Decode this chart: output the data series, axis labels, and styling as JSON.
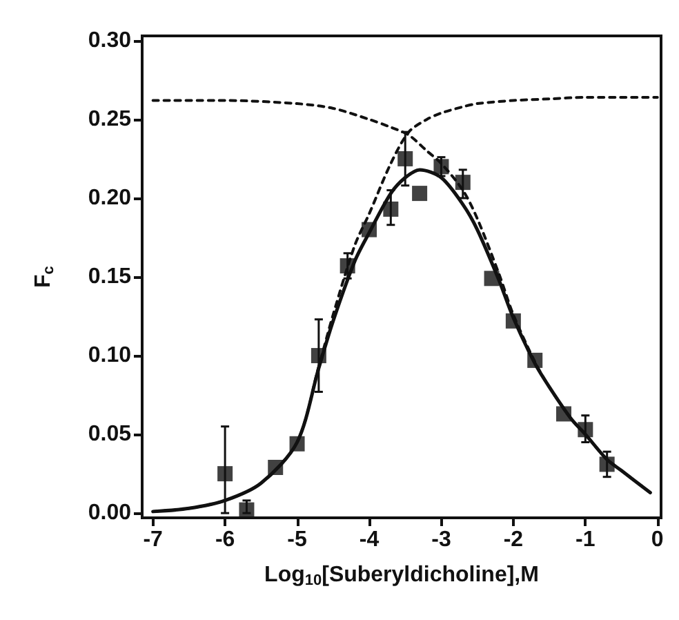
{
  "chart_data": {
    "type": "scatter",
    "xlabel": "Log$_{10}$[Suberyldicholine],M",
    "ylabel": "F$_{c}$",
    "xlim": [
      -7.15,
      0.05
    ],
    "xticks": [
      -7,
      -6,
      -5,
      -4,
      -3,
      -2,
      -1,
      0
    ],
    "ylim": [
      -0.003,
      0.303
    ],
    "yticks": [
      {
        "value": 0,
        "label": "0.00"
      },
      {
        "value": 0.05,
        "label": "0.05"
      },
      {
        "value": 0.1,
        "label": "0.10"
      },
      {
        "value": 0.15,
        "label": "0.15"
      },
      {
        "value": 0.2,
        "label": "0.20"
      },
      {
        "value": 0.25,
        "label": "0.25"
      },
      {
        "value": 0.3,
        "label": "0.30"
      }
    ],
    "series": [
      {
        "marker": "square",
        "color": "#111111",
        "x": [
          -6,
          -5.7,
          -5.3,
          -5,
          -4.7,
          -4.3,
          -4,
          -3.7,
          -3.5,
          -3.3,
          -3,
          -2.7,
          -2.3,
          -2,
          -1.7,
          -1.3,
          -1,
          -0.7
        ],
        "values": [
          0.025,
          0.002,
          0.029,
          0.044,
          0.1,
          0.157,
          0.18,
          0.193,
          0.225,
          0.203,
          0.22,
          0.21,
          0.149,
          0.122,
          0.097,
          0.063,
          0.053,
          0.031
        ],
        "errors": [
          [
            0,
            0.055
          ],
          [
            0,
            0.008
          ],
          null,
          null,
          [
            0.077,
            0.123
          ],
          [
            0.149,
            0.165
          ],
          null,
          [
            0.183,
            0.205
          ],
          [
            0.208,
            0.242
          ],
          null,
          [
            0.214,
            0.226
          ],
          [
            0.2,
            0.218
          ],
          null,
          null,
          null,
          null,
          [
            0.045,
            0.062
          ],
          [
            0.023,
            0.039
          ]
        ]
      },
      {
        "type": "line",
        "line_style": "solid",
        "marker": "none",
        "color": "#111111",
        "x": [
          -7,
          -6.5,
          -6,
          -5.5,
          -5,
          -4.7,
          -4.5,
          -4.2,
          -4,
          -3.7,
          -3.5,
          -3.3,
          -3,
          -2.7,
          -2.5,
          -2.2,
          -2,
          -1.7,
          -1.5,
          -1.2,
          -1,
          -0.7,
          -0.5,
          -0.1
        ],
        "values": [
          0.001,
          0.003,
          0.008,
          0.019,
          0.045,
          0.092,
          0.122,
          0.16,
          0.178,
          0.203,
          0.213,
          0.218,
          0.213,
          0.196,
          0.18,
          0.148,
          0.124,
          0.095,
          0.08,
          0.06,
          0.05,
          0.034,
          0.027,
          0.013
        ]
      },
      {
        "type": "line",
        "line_style": "dashed",
        "marker": "none",
        "color": "#111111",
        "x": [
          -7,
          -6,
          -5,
          -4.5,
          -4,
          -3.7,
          -3.45,
          -3.2,
          -3,
          -2.7,
          -2.5,
          -2.2,
          -2,
          -1.7,
          -1.5,
          -1.2,
          -1,
          -0.7,
          -0.5,
          -0.1
        ],
        "values": [
          0.262,
          0.262,
          0.26,
          0.257,
          0.25,
          0.245,
          0.24,
          0.23,
          0.222,
          0.205,
          0.187,
          0.152,
          0.126,
          0.096,
          0.08,
          0.06,
          0.05,
          0.034,
          0.027,
          0.013
        ]
      },
      {
        "type": "line",
        "line_style": "dashed",
        "marker": "none",
        "color": "#111111",
        "x": [
          -7,
          -6.5,
          -6,
          -5.5,
          -5,
          -4.7,
          -4.5,
          -4.2,
          -4,
          -3.7,
          -3.45,
          -3.2,
          -3,
          -2.7,
          -2.5,
          -2,
          -1.5,
          -1,
          -0.5,
          0
        ],
        "values": [
          0.001,
          0.003,
          0.008,
          0.019,
          0.045,
          0.093,
          0.126,
          0.17,
          0.19,
          0.222,
          0.242,
          0.25,
          0.254,
          0.258,
          0.26,
          0.262,
          0.263,
          0.264,
          0.264,
          0.264
        ]
      }
    ]
  }
}
